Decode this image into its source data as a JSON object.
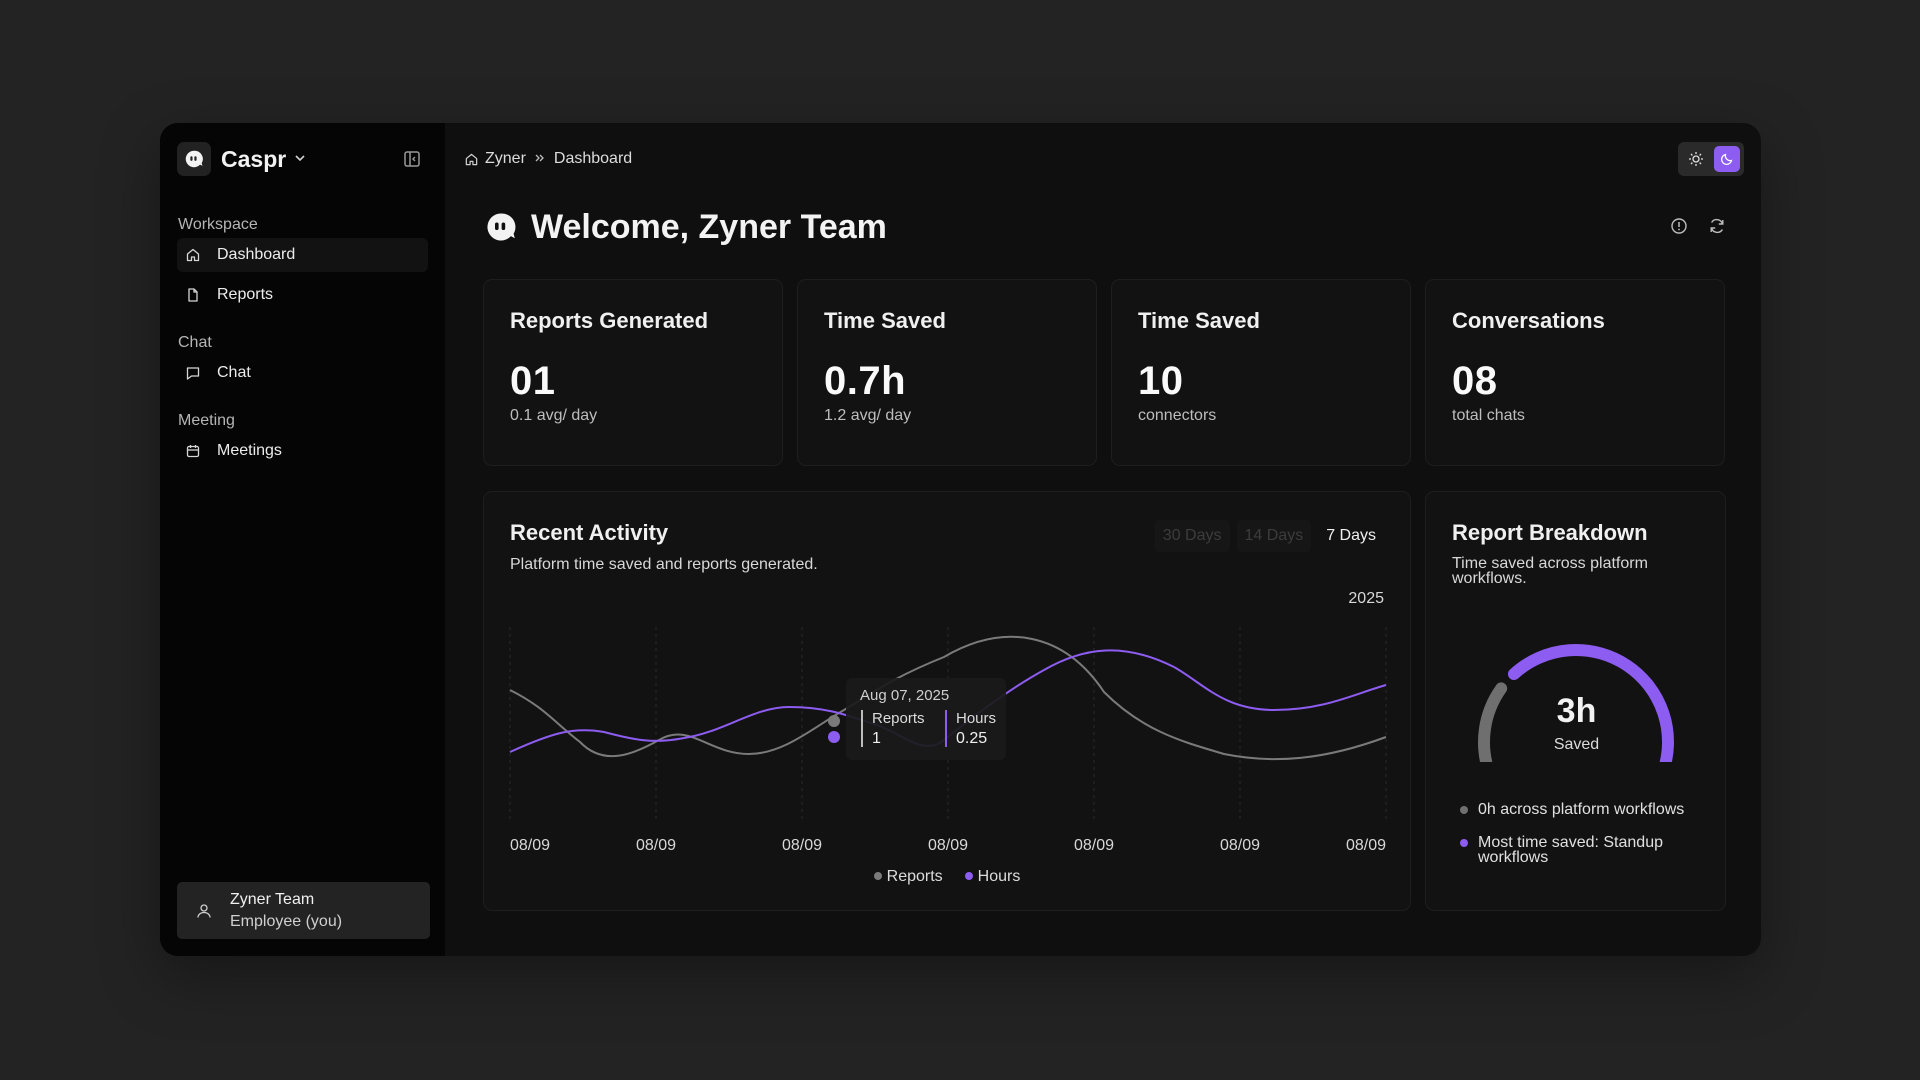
{
  "sidebar": {
    "brand": "Caspr",
    "sections": [
      {
        "label": "Workspace",
        "items": [
          {
            "label": "Dashboard",
            "icon": "home-icon",
            "active": true
          },
          {
            "label": "Reports",
            "icon": "file-icon"
          }
        ]
      },
      {
        "label": "Chat",
        "items": [
          {
            "label": "Chat",
            "icon": "message-icon"
          }
        ]
      },
      {
        "label": "Meeting",
        "items": [
          {
            "label": "Meetings",
            "icon": "calendar-icon"
          }
        ]
      }
    ],
    "user": {
      "name": "Zyner Team",
      "role": "Employee (you)"
    }
  },
  "header": {
    "breadcrumb": [
      "Zyner",
      "Dashboard"
    ]
  },
  "welcome": {
    "title": "Welcome, Zyner Team"
  },
  "stats": [
    {
      "title": "Reports Generated",
      "value": "01",
      "sub": "0.1 avg/ day"
    },
    {
      "title": "Time Saved",
      "value": "0.7h",
      "sub": "1.2 avg/ day"
    },
    {
      "title": "Time Saved",
      "value": "10",
      "sub": "connectors"
    },
    {
      "title": "Conversations",
      "value": "08",
      "sub": "total chats"
    }
  ],
  "activity": {
    "title": "Recent Activity",
    "description": "Platform time saved and reports generated.",
    "ranges": [
      "30 Days",
      "14 Days",
      "7 Days"
    ],
    "active_range": "7 Days",
    "year": "2025",
    "tooltip": {
      "date": "Aug 07, 2025",
      "reports_label": "Reports",
      "reports_value": "1",
      "hours_label": "Hours",
      "hours_value": "0.25"
    },
    "legend": {
      "reports": "Reports",
      "hours": "Hours"
    }
  },
  "chart_data": {
    "type": "line",
    "x": [
      "08/09",
      "08/09",
      "08/09",
      "08/09",
      "08/09",
      "08/09",
      "08/09"
    ],
    "series": [
      {
        "name": "Reports",
        "color": "#7a7a7a"
      },
      {
        "name": "Hours",
        "color": "#8d5cf0"
      }
    ],
    "legend_position": "bottom",
    "grid": true
  },
  "breakdown": {
    "title": "Report Breakdown",
    "description": "Time saved across platform workflows.",
    "gauge_value": "3h",
    "gauge_label": "Saved",
    "gauge_fraction": 0.72,
    "items": [
      {
        "text": "0h across  platform workflows",
        "color": "#6f6f6f"
      },
      {
        "text": "Most time saved: Standup workflows",
        "color": "#8d5cf0"
      }
    ]
  },
  "colors": {
    "accent": "#8d5cf0",
    "muted_series": "#7a7a7a",
    "panel": "#121212"
  }
}
